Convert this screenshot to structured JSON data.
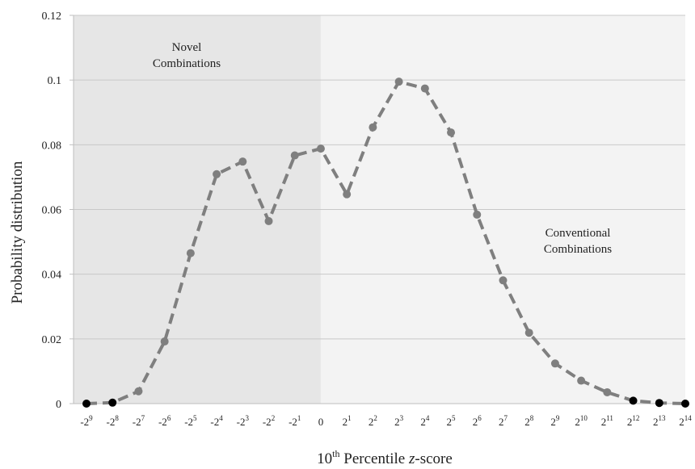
{
  "chart_data": {
    "type": "line",
    "xlabel_main": "10",
    "xlabel_sup": "th",
    "xlabel_rest": " Percentile ",
    "xlabel_italic": "z",
    "xlabel_end": "-score",
    "ylabel": "Probability distribution",
    "ylim": [
      0,
      0.12
    ],
    "yticks": [
      "0",
      "0.02",
      "0.04",
      "0.06",
      "0.08",
      "0.1",
      "0.12"
    ],
    "ytick_values": [
      0,
      0.02,
      0.04,
      0.06,
      0.08,
      0.1,
      0.12
    ],
    "categories": [
      {
        "base": "-2",
        "exp": "9"
      },
      {
        "base": "-2",
        "exp": "8"
      },
      {
        "base": "-2",
        "exp": "7"
      },
      {
        "base": "-2",
        "exp": "6"
      },
      {
        "base": "-2",
        "exp": "5"
      },
      {
        "base": "-2",
        "exp": "4"
      },
      {
        "base": "-2",
        "exp": "3"
      },
      {
        "base": "-2",
        "exp": "2"
      },
      {
        "base": "-2",
        "exp": "1"
      },
      {
        "base": "0",
        "exp": ""
      },
      {
        "base": "2",
        "exp": "1"
      },
      {
        "base": "2",
        "exp": "2"
      },
      {
        "base": "2",
        "exp": "3"
      },
      {
        "base": "2",
        "exp": "4"
      },
      {
        "base": "2",
        "exp": "5"
      },
      {
        "base": "2",
        "exp": "6"
      },
      {
        "base": "2",
        "exp": "7"
      },
      {
        "base": "2",
        "exp": "8"
      },
      {
        "base": "2",
        "exp": "9"
      },
      {
        "base": "2",
        "exp": "10"
      },
      {
        "base": "2",
        "exp": "11"
      },
      {
        "base": "2",
        "exp": "12"
      },
      {
        "base": "2",
        "exp": "13"
      },
      {
        "base": "2",
        "exp": "14"
      }
    ],
    "values": [
      0.0,
      0.0003,
      0.0038,
      0.0192,
      0.0465,
      0.0709,
      0.0748,
      0.0564,
      0.0767,
      0.0788,
      0.0647,
      0.0854,
      0.0995,
      0.0974,
      0.0838,
      0.0584,
      0.0381,
      0.0219,
      0.0124,
      0.0071,
      0.0035,
      0.0009,
      0.0002,
      0.0
    ],
    "zero_points_black": [
      0,
      1,
      21,
      22,
      23
    ],
    "shaded_region_end_index": 9,
    "annotations": [
      {
        "lines": [
          "Novel",
          "Combinations"
        ],
        "region": "left"
      },
      {
        "lines": [
          "Conventional",
          "Combinations"
        ],
        "region": "right"
      }
    ],
    "colors": {
      "line": "#7f7f7f",
      "marker": "#7f7f7f",
      "zero_marker": "#000000",
      "shade_left": "#e6e6e6",
      "shade_right": "#f3f3f3",
      "grid": "#c8c8c8"
    },
    "grid": true
  }
}
